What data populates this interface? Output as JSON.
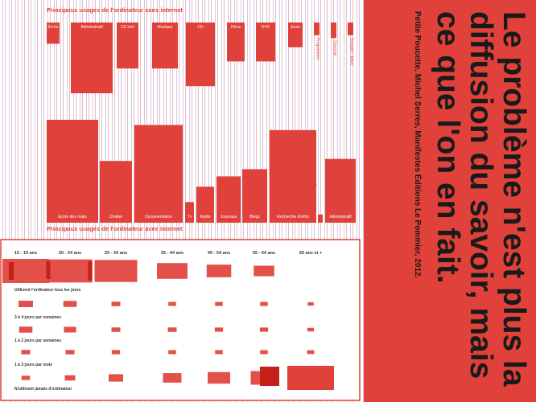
{
  "colors": {
    "accent": "#e0413a",
    "ink": "#1a1a1a",
    "stripe_blue": "#c9cdf0",
    "stripe_red": "#f0b8b4"
  },
  "quote": {
    "text": "Le problème n'est plus la diffusion du savoir, mais ce que l'on en fait.",
    "credit": "Petite Poucette, Michel Serres, Manifestes Éditions Le Pommier, 2012."
  },
  "chart_data": [
    {
      "type": "bar",
      "title": "Principaux usages de l'ordinateur sans internet",
      "categories": [
        "Écrire",
        "Administratif",
        "CD rom",
        "Musique",
        "CD",
        "Films",
        "DVD",
        "Jouer",
        "Programmer",
        "Dessiner",
        "Sampler / Mixer"
      ],
      "values": [
        30,
        100,
        65,
        65,
        90,
        55,
        55,
        35,
        18,
        22,
        18
      ]
    },
    {
      "type": "bar",
      "title": "Principaux usages de l'ordinateur avec internet",
      "categories": [
        "Écrire des mails",
        "Chatter",
        "Documentation",
        "Tv",
        "Radio",
        "Journaux",
        "Blogs",
        "Recherche d'infos",
        "Formation en ligne",
        "Administratif"
      ],
      "values": [
        100,
        60,
        95,
        20,
        35,
        45,
        52,
        90,
        8,
        62
      ]
    },
    {
      "type": "heatmap",
      "x": [
        "15 - 19 ans",
        "20 - 24 ans",
        "25 - 34 ans",
        "35 - 44 ans",
        "45 - 54 ans",
        "55 - 64 ans",
        "65 ans et +"
      ],
      "y": [
        "Utilisent l'ordinateur tous les jours",
        "3 à 4 jours par semaines",
        "1 à 2 jours par semaines",
        "1 à 3 jours par mois",
        "N'utilisent jamais d'ordinateur"
      ],
      "values": [
        [
          100,
          95,
          90,
          60,
          45,
          35,
          0
        ],
        [
          20,
          18,
          10,
          8,
          8,
          8,
          5
        ],
        [
          18,
          16,
          10,
          10,
          9,
          9,
          6
        ],
        [
          10,
          10,
          9,
          8,
          8,
          8,
          7
        ],
        [
          5,
          10,
          20,
          30,
          40,
          50,
          100
        ]
      ]
    }
  ]
}
